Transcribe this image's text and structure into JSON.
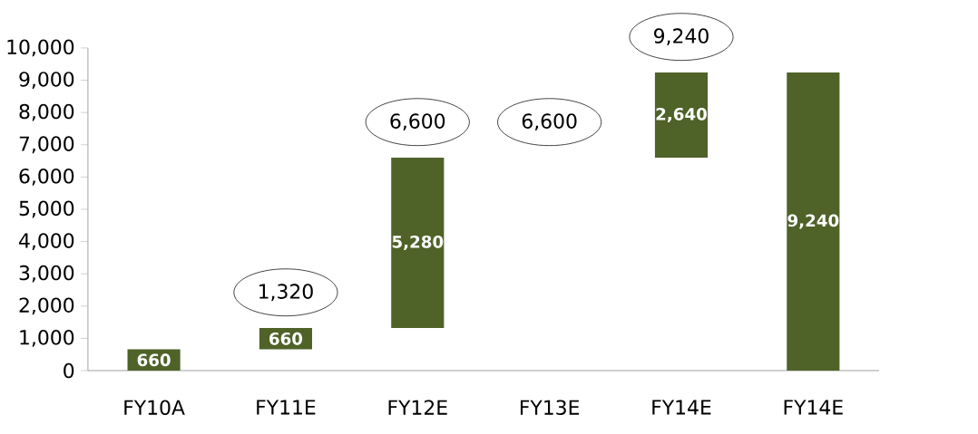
{
  "chart_data": {
    "type": "bar",
    "categories": [
      "FY10A",
      "FY11E",
      "FY12E",
      "FY13E",
      "FY14E",
      "FY14E"
    ],
    "values": [
      660,
      660,
      5280,
      null,
      2640,
      9240
    ],
    "base": [
      0,
      660,
      1320,
      null,
      6600,
      0
    ],
    "value_labels": [
      "660",
      "660",
      "5,280",
      null,
      "2,640",
      "9,240"
    ],
    "color": "#4f6228",
    "ylim": [
      0,
      10000
    ],
    "yticks": [
      0,
      {
        "value": 1000,
        "label": "1,000"
      },
      {
        "value": 2000,
        "label": "2,000"
      },
      {
        "value": 3000,
        "label": "3,000"
      },
      {
        "value": 4000,
        "label": "4,000"
      },
      {
        "value": 5000,
        "label": "5,000"
      },
      {
        "value": 6000,
        "label": "6,000"
      },
      {
        "value": 7000,
        "label": "7,000"
      },
      {
        "value": 8000,
        "label": "8,000"
      },
      {
        "value": 9000,
        "label": "9,000"
      },
      {
        "value": 10000,
        "label": "10,000"
      }
    ],
    "annotations": [
      {
        "text": "1,320",
        "x": "FY11E",
        "y": 1320
      },
      {
        "text": "6,600",
        "x": "FY12E",
        "y": 6600
      },
      "6,600",
      {
        "text": "9,240",
        "x": "FY14E",
        "y": 9240
      }
    ]
  }
}
